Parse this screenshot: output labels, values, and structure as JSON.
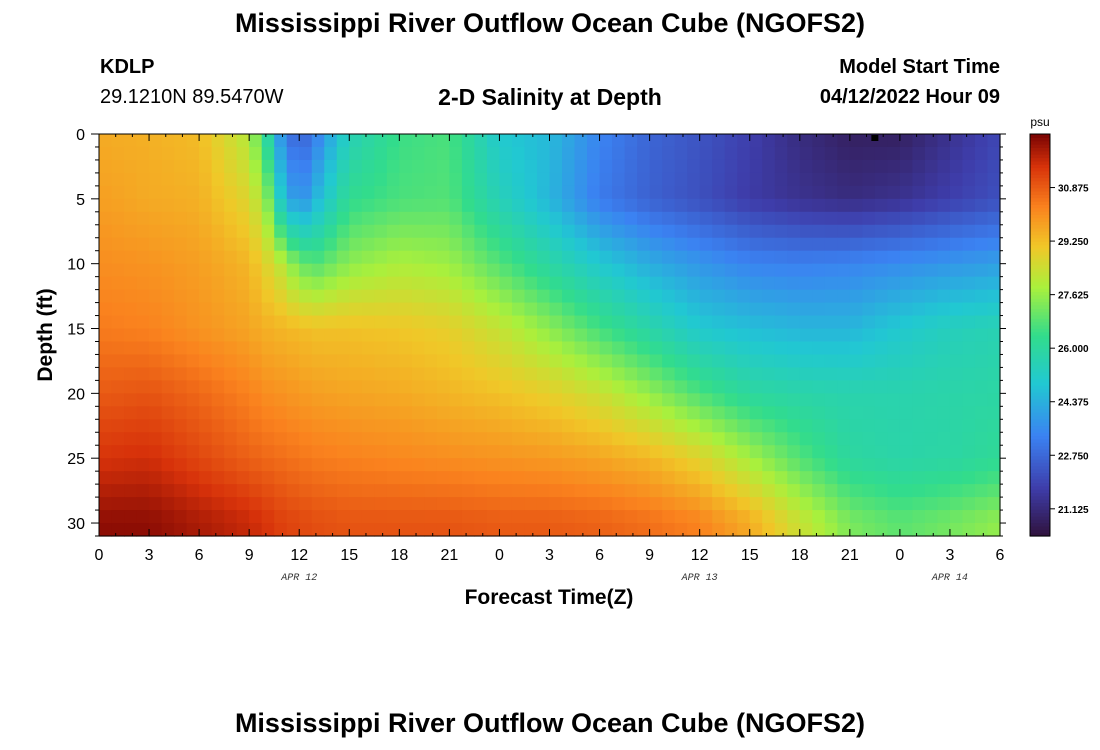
{
  "header": {
    "title": "Mississippi River Outflow Ocean Cube (NGOFS2)",
    "station": "KDLP",
    "coords": "29.1210N  89.5470W",
    "subtitle": "2-D Salinity at Depth",
    "start_label": "Model Start Time",
    "start_value": "04/12/2022 Hour 09"
  },
  "footer": {
    "title": "Mississippi River Outflow Ocean Cube (NGOFS2)"
  },
  "chart_data": {
    "type": "heatmap",
    "title": "2-D Salinity at Depth",
    "xlabel": "Forecast Time(Z)",
    "ylabel": "Depth (ft)",
    "x_unit": "hours since 2022-04-12 00Z",
    "xlim": [
      0,
      54
    ],
    "ylim": [
      0,
      31
    ],
    "y_inverted": true,
    "x_ticks": [
      0,
      3,
      6,
      9,
      12,
      15,
      18,
      21,
      24,
      27,
      30,
      33,
      36,
      39,
      42,
      45,
      48,
      51,
      54
    ],
    "x_tick_labels": [
      "0",
      "3",
      "6",
      "9",
      "12",
      "15",
      "18",
      "21",
      "0",
      "3",
      "6",
      "9",
      "12",
      "15",
      "18",
      "21",
      "0",
      "3",
      "6"
    ],
    "date_labels": [
      {
        "x": 12,
        "text": "APR 12"
      },
      {
        "x": 36,
        "text": "APR 13"
      },
      {
        "x": 51,
        "text": "APR 14"
      }
    ],
    "y_ticks": [
      0,
      5,
      10,
      15,
      20,
      25,
      30
    ],
    "y_tick_labels": [
      "0",
      "5",
      "10",
      "15",
      "20",
      "25",
      "30"
    ],
    "colorbar": {
      "unit": "psu",
      "min": 20.3,
      "max": 32.5,
      "tick_values": [
        21.125,
        22.75,
        24.375,
        26.0,
        27.625,
        29.25,
        30.875
      ],
      "tick_labels": [
        "21.125",
        "22.750",
        "24.375",
        "26.000",
        "27.625",
        "29.250",
        "30.875"
      ]
    },
    "marker": {
      "x": 46.5,
      "y": 0
    },
    "salinity_psu": {
      "depths_ft": [
        0,
        5,
        10,
        15,
        20,
        25,
        30
      ],
      "times_h": [
        0,
        3,
        6,
        9,
        10,
        11,
        12,
        13,
        15,
        18,
        21,
        24,
        27,
        30,
        33,
        36,
        39,
        42,
        45,
        48,
        51,
        54
      ],
      "values": [
        [
          29.6,
          29.5,
          29.3,
          28.0,
          26.2,
          23.5,
          22.5,
          23.3,
          25.5,
          26.5,
          26.7,
          25.0,
          24.6,
          23.4,
          22.7,
          22.3,
          21.8,
          21.2,
          20.8,
          20.8,
          21.4,
          22.0
        ],
        [
          29.8,
          29.6,
          29.5,
          28.7,
          27.6,
          24.8,
          23.5,
          24.5,
          26.3,
          26.7,
          26.8,
          25.5,
          24.5,
          23.2,
          22.6,
          22.2,
          21.7,
          21.4,
          21.2,
          21.4,
          21.8,
          22.2
        ],
        [
          30.1,
          30.0,
          29.8,
          29.4,
          28.8,
          28.1,
          27.1,
          26.8,
          27.5,
          27.9,
          27.7,
          26.8,
          25.9,
          25.0,
          24.3,
          23.8,
          23.4,
          23.3,
          23.4,
          23.6,
          23.8,
          24.0
        ],
        [
          30.4,
          30.3,
          30.0,
          29.7,
          29.5,
          29.4,
          29.3,
          29.2,
          29.2,
          29.1,
          28.9,
          28.3,
          27.5,
          26.6,
          25.8,
          25.0,
          24.7,
          24.5,
          24.5,
          25.0,
          25.4,
          25.6
        ],
        [
          30.9,
          31.0,
          30.7,
          30.3,
          30.1,
          30.0,
          29.9,
          29.8,
          29.7,
          29.6,
          29.4,
          29.2,
          28.9,
          28.4,
          27.6,
          26.7,
          26.0,
          25.8,
          25.7,
          25.7,
          25.8,
          25.9
        ],
        [
          31.5,
          31.6,
          31.2,
          30.8,
          30.7,
          30.6,
          30.5,
          30.4,
          30.3,
          30.2,
          30.1,
          30.0,
          29.9,
          29.7,
          29.4,
          28.8,
          27.8,
          26.8,
          26.0,
          25.8,
          25.9,
          26.2
        ],
        [
          32.3,
          32.3,
          32.0,
          31.7,
          31.5,
          31.3,
          31.2,
          31.1,
          31.0,
          31.0,
          31.0,
          30.9,
          30.9,
          30.8,
          30.6,
          30.3,
          29.6,
          28.4,
          27.3,
          26.9,
          27.2,
          27.6
        ]
      ]
    }
  }
}
